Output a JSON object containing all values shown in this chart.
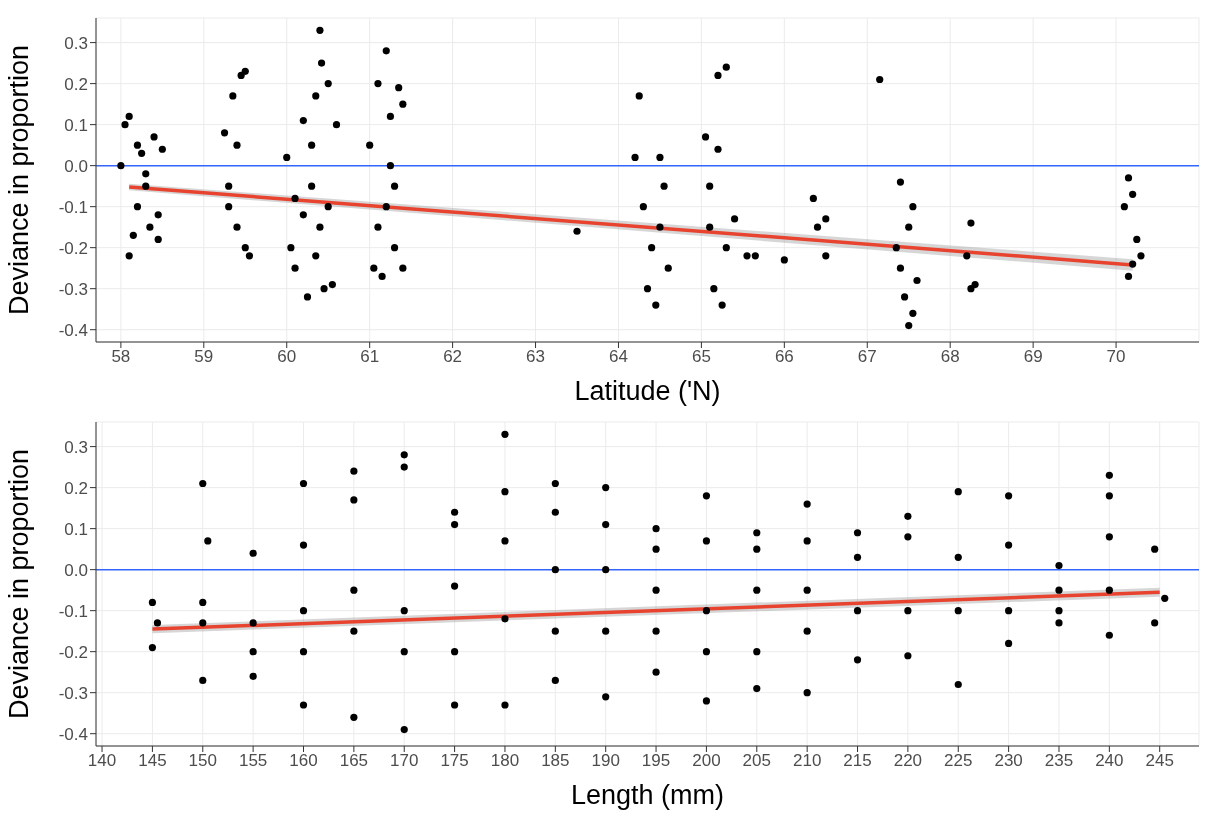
{
  "chart_data": [
    {
      "type": "scatter",
      "xlabel": "Latitude ('N)",
      "ylabel": "Deviance in proportion",
      "xlim": [
        57.7,
        71
      ],
      "xticks": [
        58,
        59,
        60,
        61,
        62,
        63,
        64,
        65,
        66,
        67,
        68,
        69,
        70
      ],
      "ylim": [
        -0.43,
        0.36
      ],
      "yticks": [
        -0.4,
        -0.3,
        -0.2,
        -0.1,
        {
          "value": 0,
          "label": "0.0"
        },
        0.1,
        0.2,
        0.3
      ],
      "grid": true,
      "marker": "circle",
      "ref_lines": [
        {
          "axis": "y",
          "value": 0,
          "color": "#3366ff"
        }
      ],
      "series": [
        {
          "color": "#000000",
          "x": [
            58.05,
            58.1,
            58.1,
            58.15,
            58.2,
            58.2,
            58.25,
            58.3,
            58.35,
            58.4,
            58.45,
            58.5,
            58.45,
            58.0,
            58.3,
            59.25,
            59.3,
            59.35,
            59.4,
            59.45,
            59.5,
            59.5,
            59.55,
            59.4,
            59.3,
            60.0,
            60.05,
            60.1,
            60.2,
            60.25,
            60.3,
            60.35,
            60.4,
            60.42,
            60.45,
            60.5,
            60.55,
            60.5,
            60.4,
            60.3,
            60.2,
            60.1,
            60.6,
            60.35,
            61.0,
            61.05,
            61.1,
            61.15,
            61.2,
            61.25,
            61.3,
            61.35,
            61.4,
            61.4,
            61.2,
            61.3,
            61.1,
            61.25,
            63.5,
            64.25,
            64.2,
            64.3,
            64.35,
            64.4,
            64.45,
            64.5,
            64.5,
            64.55,
            64.6,
            65.05,
            65.1,
            65.15,
            65.2,
            65.25,
            65.3,
            65.2,
            65.1,
            65.3,
            65.4,
            65.55,
            65.65,
            66.0,
            66.35,
            66.4,
            66.5,
            66.5,
            67.15,
            67.4,
            67.4,
            67.45,
            67.5,
            67.55,
            67.5,
            67.55,
            67.35,
            67.6,
            68.25,
            68.2,
            68.3,
            68.25,
            70.15,
            70.2,
            70.1,
            70.25,
            70.15,
            70.3,
            70.2
          ],
          "values": [
            0.1,
            0.12,
            -0.22,
            -0.17,
            0.05,
            -0.1,
            0.03,
            -0.05,
            -0.15,
            0.07,
            -0.12,
            0.04,
            -0.18,
            0.0,
            -0.02,
            0.08,
            -0.1,
            0.17,
            -0.15,
            0.22,
            0.23,
            -0.2,
            -0.22,
            0.05,
            -0.05,
            0.02,
            -0.2,
            -0.25,
            0.11,
            -0.32,
            0.05,
            0.17,
            0.33,
            0.25,
            -0.3,
            0.2,
            -0.29,
            -0.1,
            -0.15,
            -0.05,
            -0.12,
            -0.08,
            0.1,
            -0.22,
            0.05,
            -0.25,
            0.2,
            -0.27,
            0.28,
            0.12,
            -0.2,
            0.19,
            0.15,
            -0.25,
            -0.1,
            -0.05,
            -0.15,
            0.0,
            -0.16,
            0.17,
            0.02,
            -0.1,
            -0.3,
            -0.2,
            -0.34,
            0.02,
            -0.15,
            -0.05,
            -0.25,
            0.07,
            -0.05,
            -0.3,
            0.22,
            -0.34,
            0.24,
            0.04,
            -0.15,
            -0.2,
            -0.13,
            -0.22,
            -0.22,
            -0.23,
            -0.08,
            -0.15,
            -0.13,
            -0.22,
            0.21,
            -0.04,
            -0.25,
            -0.32,
            -0.39,
            -0.36,
            -0.15,
            -0.1,
            -0.2,
            -0.28,
            -0.14,
            -0.22,
            -0.29,
            -0.3,
            -0.03,
            -0.07,
            -0.1,
            -0.18,
            -0.27,
            -0.22,
            -0.24
          ]
        },
        {
          "type": "line",
          "marker": "none",
          "color": "#e8432e",
          "x": [
            58.1,
            70.2
          ],
          "values": [
            -0.052,
            -0.242
          ],
          "lower": [
            -0.06,
            -0.256
          ],
          "upper": [
            -0.044,
            -0.228
          ]
        }
      ]
    },
    {
      "type": "scatter",
      "xlabel": "Length (mm)",
      "ylabel": "Deviance in proportion",
      "xlim": [
        139.4,
        248.9
      ],
      "xticks": [
        140,
        145,
        150,
        155,
        160,
        165,
        170,
        175,
        180,
        185,
        190,
        195,
        200,
        205,
        210,
        215,
        220,
        225,
        230,
        235,
        240,
        245
      ],
      "ylim": [
        -0.43,
        0.36
      ],
      "yticks": [
        -0.4,
        -0.3,
        -0.2,
        -0.1,
        {
          "value": 0,
          "label": "0.0"
        },
        0.1,
        0.2,
        0.3
      ],
      "grid": true,
      "marker": "circle",
      "ref_lines": [
        {
          "axis": "y",
          "value": 0,
          "color": "#3366ff"
        }
      ],
      "series": [
        {
          "color": "#000000",
          "x": [
            145,
            145,
            145.5,
            150,
            150,
            150,
            150,
            150.5,
            155,
            155,
            155,
            155,
            160,
            160,
            160,
            160,
            160,
            165,
            165,
            165,
            165,
            165,
            170,
            170,
            170,
            170,
            170,
            175,
            175,
            175,
            175,
            175,
            180,
            180,
            180,
            180,
            180,
            185,
            185,
            185,
            185,
            185,
            190,
            190,
            190,
            190,
            190,
            195,
            195,
            195,
            195,
            195,
            200,
            200,
            200,
            200,
            200,
            205,
            205,
            205,
            205,
            205,
            210,
            210,
            210,
            210,
            210,
            215,
            215,
            215,
            215,
            220,
            220,
            220,
            220,
            225,
            225,
            225,
            225,
            230,
            230,
            230,
            230,
            235,
            235,
            235,
            235,
            240,
            240,
            240,
            240,
            240,
            244.5,
            244.5,
            245.5
          ],
          "values": [
            -0.08,
            -0.19,
            -0.13,
            0.21,
            -0.27,
            -0.08,
            -0.13,
            0.07,
            0.04,
            -0.26,
            -0.13,
            -0.2,
            0.21,
            -0.33,
            0.06,
            -0.1,
            -0.2,
            0.24,
            -0.36,
            0.17,
            -0.05,
            -0.15,
            0.28,
            -0.39,
            0.25,
            -0.1,
            -0.2,
            0.14,
            -0.33,
            0.11,
            -0.04,
            -0.2,
            0.33,
            -0.33,
            0.19,
            0.07,
            -0.12,
            0.21,
            -0.27,
            0.14,
            0.0,
            -0.15,
            0.2,
            -0.31,
            0.11,
            0.0,
            -0.15,
            0.1,
            -0.25,
            0.05,
            -0.05,
            -0.15,
            0.18,
            -0.32,
            0.07,
            -0.1,
            -0.2,
            0.09,
            -0.29,
            0.05,
            -0.05,
            -0.2,
            0.16,
            -0.3,
            0.07,
            -0.05,
            -0.15,
            0.09,
            -0.22,
            0.03,
            -0.1,
            0.13,
            -0.21,
            0.08,
            -0.1,
            0.19,
            -0.28,
            0.03,
            -0.1,
            0.18,
            -0.18,
            0.06,
            -0.1,
            0.01,
            -0.13,
            -0.05,
            -0.1,
            0.23,
            -0.16,
            0.18,
            0.08,
            -0.05,
            0.05,
            -0.13,
            -0.07
          ]
        },
        {
          "type": "line",
          "marker": "none",
          "color": "#e8432e",
          "x": [
            145,
            245
          ],
          "values": [
            -0.145,
            -0.055
          ],
          "lower": [
            -0.155,
            -0.066
          ],
          "upper": [
            -0.135,
            -0.044
          ]
        }
      ]
    }
  ]
}
